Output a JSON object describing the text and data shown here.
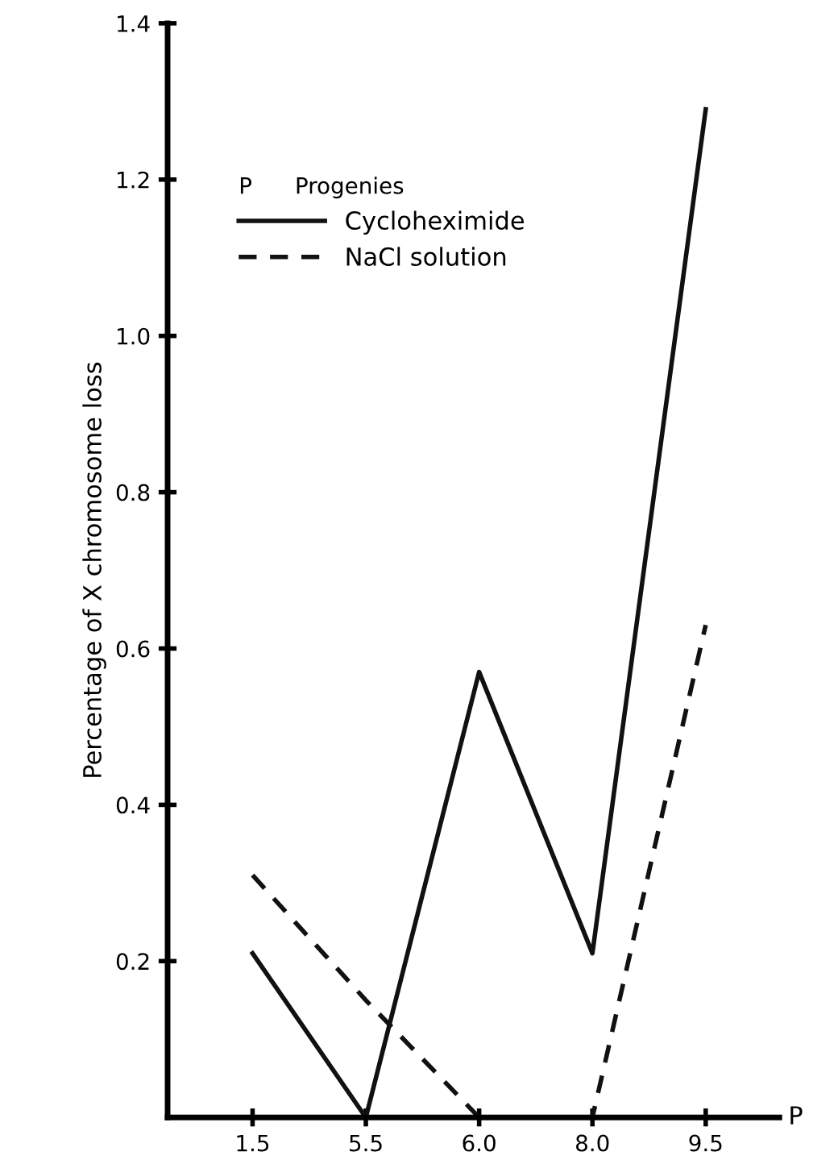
{
  "chart_data": {
    "type": "line",
    "xlabel": "P",
    "ylabel": "Percentage of X chromosome loss",
    "legend_title": "P      Progenies",
    "categories": [
      "1.5",
      "5.5",
      "6.0",
      "8.0",
      "9.5"
    ],
    "series": [
      {
        "name": "Cycloheximide",
        "color": "#111111",
        "line_style": "solid",
        "values": [
          0.21,
          0.0,
          0.57,
          0.21,
          1.29
        ]
      },
      {
        "name": "NaCl solution",
        "color": "#111111",
        "line_style": "dashed",
        "values": [
          0.31,
          0.15,
          0.0,
          0.0,
          0.63
        ]
      }
    ],
    "ylim": [
      0,
      1.4
    ],
    "yticks": [
      0.2,
      0.4,
      0.6,
      0.8,
      {
        "value": 1.0,
        "label": "1.0"
      },
      1.2,
      1.4
    ],
    "marker": "none",
    "grid": false,
    "legend": "top left"
  }
}
